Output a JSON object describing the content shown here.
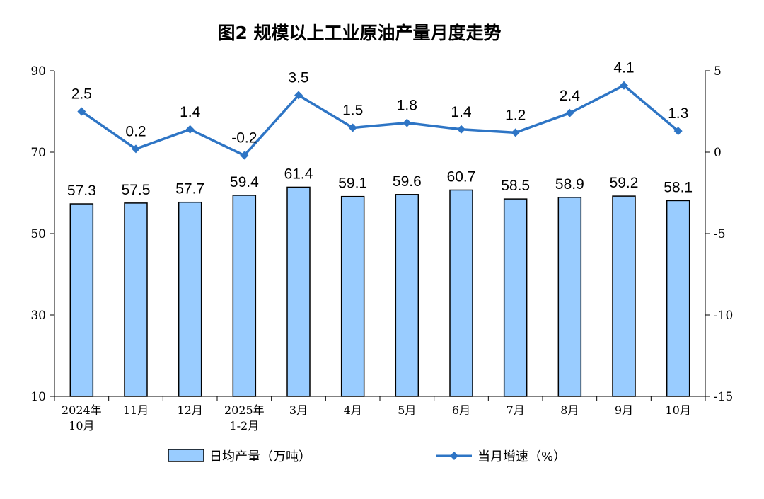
{
  "chart_data": {
    "type": "bar",
    "title": "图2  规模以上工业原油产量月度走势",
    "categories": [
      [
        "2024年",
        "10月"
      ],
      [
        "11月"
      ],
      [
        "12月"
      ],
      [
        "2025年",
        "1-2月"
      ],
      [
        "3月"
      ],
      [
        "4月"
      ],
      [
        "5月"
      ],
      [
        "6月"
      ],
      [
        "7月"
      ],
      [
        "8月"
      ],
      [
        "9月"
      ],
      [
        "10月"
      ]
    ],
    "series": [
      {
        "name": "日均产量（万吨）",
        "type": "bar",
        "axis": "left",
        "color": "#99ccff",
        "values": [
          57.3,
          57.5,
          57.7,
          59.4,
          61.4,
          59.1,
          59.6,
          60.7,
          58.5,
          58.9,
          59.2,
          58.1
        ],
        "labels": [
          "57.3",
          "57.5",
          "57.7",
          "59.4",
          "61.4",
          "59.1",
          "59.6",
          "60.7",
          "58.5",
          "58.9",
          "59.2",
          "58.1"
        ]
      },
      {
        "name": "当月增速（%）",
        "type": "line",
        "axis": "right",
        "color": "#2e75c5",
        "values": [
          2.5,
          0.2,
          1.4,
          -0.2,
          3.5,
          1.5,
          1.8,
          1.4,
          1.2,
          2.4,
          4.1,
          1.3
        ],
        "labels": [
          "2.5",
          "0.2",
          "1.4",
          "-0.2",
          "3.5",
          "1.5",
          "1.8",
          "1.4",
          "1.2",
          "2.4",
          "4.1",
          "1.3"
        ]
      }
    ],
    "y_left": {
      "range": [
        10,
        90
      ],
      "ticks": [
        "90",
        "70",
        "50",
        "30",
        "10"
      ],
      "tick_values": [
        90,
        70,
        50,
        30,
        10
      ]
    },
    "y_right": {
      "range": [
        -15,
        5
      ],
      "ticks": [
        "5",
        "0",
        "-5",
        "-10",
        "-15"
      ],
      "tick_values": [
        5,
        0,
        -5,
        -10,
        -15
      ]
    },
    "grid": false,
    "legend_position": "bottom"
  }
}
